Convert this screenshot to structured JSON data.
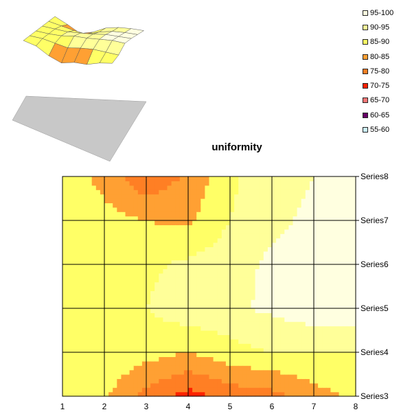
{
  "chart_data": {
    "type": "contour",
    "title": "uniformity",
    "x": [
      1,
      2,
      3,
      4,
      5,
      6,
      7,
      8
    ],
    "series_labels": [
      "Series3",
      "Series4",
      "Series5",
      "Series6",
      "Series7",
      "Series8"
    ],
    "legend": [
      {
        "label": "95-100",
        "color": "#ffffe0"
      },
      {
        "label": "90-95",
        "color": "#ffff99"
      },
      {
        "label": "85-90",
        "color": "#ffff66"
      },
      {
        "label": "80-85",
        "color": "#ffa033"
      },
      {
        "label": "75-80",
        "color": "#ff7f24"
      },
      {
        "label": "70-75",
        "color": "#ff2200"
      },
      {
        "label": "65-70",
        "color": "#ff7777"
      },
      {
        "label": "60-65",
        "color": "#660066"
      },
      {
        "label": "55-60",
        "color": "#ccf2ff"
      }
    ],
    "values": {
      "Series8": [
        89,
        83,
        76,
        81,
        89,
        93,
        95,
        96
      ],
      "Series7": [
        89,
        87,
        85,
        84,
        90,
        94,
        96,
        97
      ],
      "Series6": [
        89,
        89,
        89,
        91,
        93,
        96,
        97,
        98
      ],
      "Series5": [
        89,
        89,
        90,
        93,
        94,
        96,
        98,
        98
      ],
      "Series4": [
        89,
        89,
        87,
        85,
        88,
        90,
        90,
        90
      ],
      "Series3": [
        89,
        86,
        78,
        73,
        77,
        78,
        83,
        86
      ]
    },
    "legend_position": "top-right",
    "grid": true
  }
}
